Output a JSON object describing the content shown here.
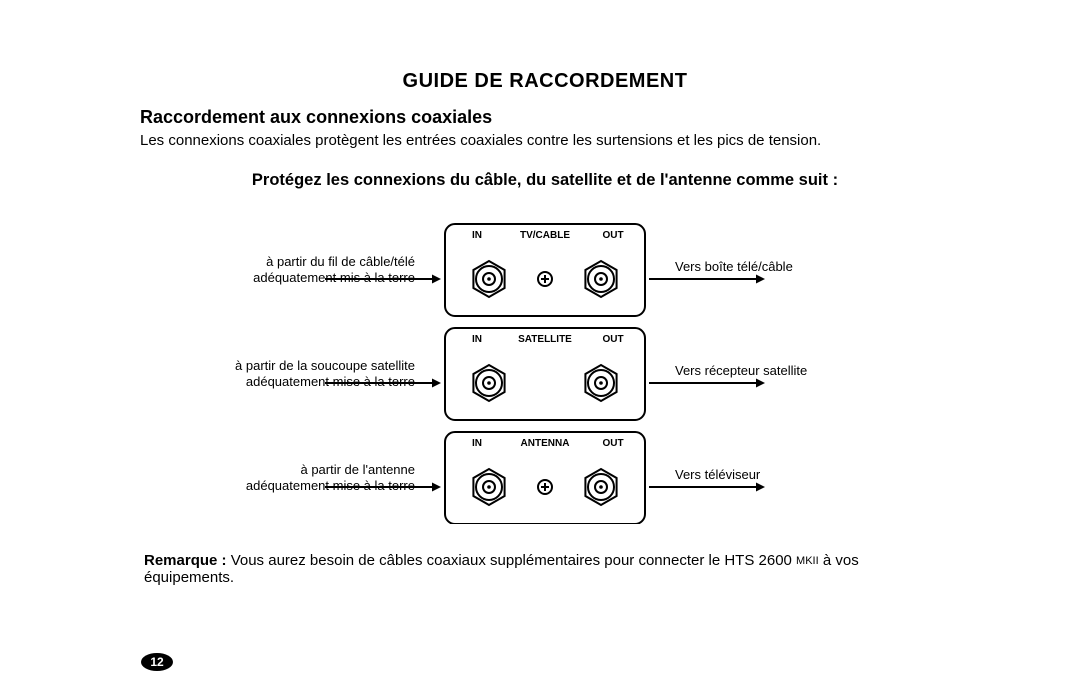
{
  "title": "GUIDE DE RACCORDEMENT",
  "subtitle": "Raccordement aux connexions coaxiales",
  "intro": "Les connexions coaxiales protègent les entrées coaxiales contre les surtensions et les pics de tension.",
  "instruction": "Protégez les connexions du câble, du satellite et de l'antenne comme suit :",
  "sections": [
    {
      "header_in": "IN",
      "header_name": "TV/CABLE",
      "header_out": "OUT",
      "left_line1": "à partir du fil de câble/télé",
      "left_line2": "adéquatement mis à la terre",
      "right": "Vers boîte télé/câble",
      "screw_between": true
    },
    {
      "header_in": "IN",
      "header_name": "SATELLITE",
      "header_out": "OUT",
      "left_line1": "à partir de la soucoupe satellite",
      "left_line2": "adéquatement mise à la terre",
      "right": "Vers récepteur satellite",
      "screw_between": false
    },
    {
      "header_in": "IN",
      "header_name": "ANTENNA",
      "header_out": "OUT",
      "left_line1": "à partir de l'antenne",
      "left_line2": "adéquatement mise à la terre",
      "right": "Vers téléviseur",
      "screw_between": true
    }
  ],
  "note_label": "Remarque :",
  "note_body_a": " Vous aurez besoin de câbles coaxiaux supplémentaires pour connecter le HTS 2600 ",
  "note_mkii": "MKII",
  "note_body_b": " à vos équipements.",
  "page_number": "12",
  "style": {
    "stroke": "#000000",
    "stroke_width": 2,
    "box_corner_radius": 10,
    "connector_outer_r": 18,
    "connector_inner_r": 6,
    "screw_r": 7,
    "diagram_box_w": 200,
    "diagram_box_h": 92,
    "header_font_size": 10,
    "label_font_size": 13
  }
}
